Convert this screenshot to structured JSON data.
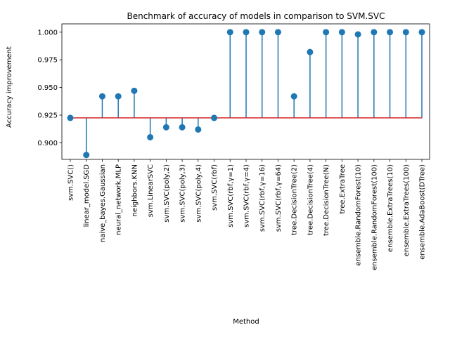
{
  "chart_data": {
    "type": "stem",
    "title": "Benchmark of accuracy of models in comparison to SVM.SVC",
    "xlabel": "Method",
    "ylabel": "Accuracy improvement",
    "ylim": [
      0.885,
      1.0075
    ],
    "yticks": [
      0.9,
      0.925,
      0.95,
      0.975,
      1.0
    ],
    "ytick_labels": [
      "0.900",
      "0.925",
      "0.950",
      "0.975",
      "1.000"
    ],
    "baseline": 0.9225,
    "grid": false,
    "legend": "none",
    "categories": [
      "svm.SVC()",
      "linear_model.SGD",
      "naive_bayes.Gaussian",
      "neural_network.MLP",
      "neighbors.KNN",
      "svm.LinearSVC",
      "svm.SVC(poly,2)",
      "svm.SVC(poly,3)",
      "svm.SVC(poly,4)",
      "svm.SVC(rbf)",
      "svm.SVC(rbf,γ=1)",
      "svm.SVC(rbf,γ=4)",
      "svm.SVC(rbf,γ=16)",
      "svm.SVC(rbf,γ=64)",
      "tree.DecisionTree(2)",
      "tree.DecisionTree(4)",
      "tree.DecisionTree(N)",
      "tree.ExtraTree",
      "ensemble.RandomForest(10)",
      "ensemble.RandomForest(100)",
      "ensemble.ExtraTrees(10)",
      "ensemble.ExtraTrees(100)",
      "ensemble.AdaBoost(DTree)"
    ],
    "values": [
      0.9225,
      0.889,
      0.942,
      0.942,
      0.947,
      0.905,
      0.914,
      0.914,
      0.912,
      0.9225,
      1.0,
      1.0,
      1.0,
      1.0,
      0.942,
      0.982,
      1.0,
      1.0,
      0.998,
      1.0,
      1.0,
      1.0,
      1.0
    ],
    "colors": {
      "stem": "#1f77b4",
      "marker": "#1f77b4",
      "baseline": "#d62728"
    }
  }
}
